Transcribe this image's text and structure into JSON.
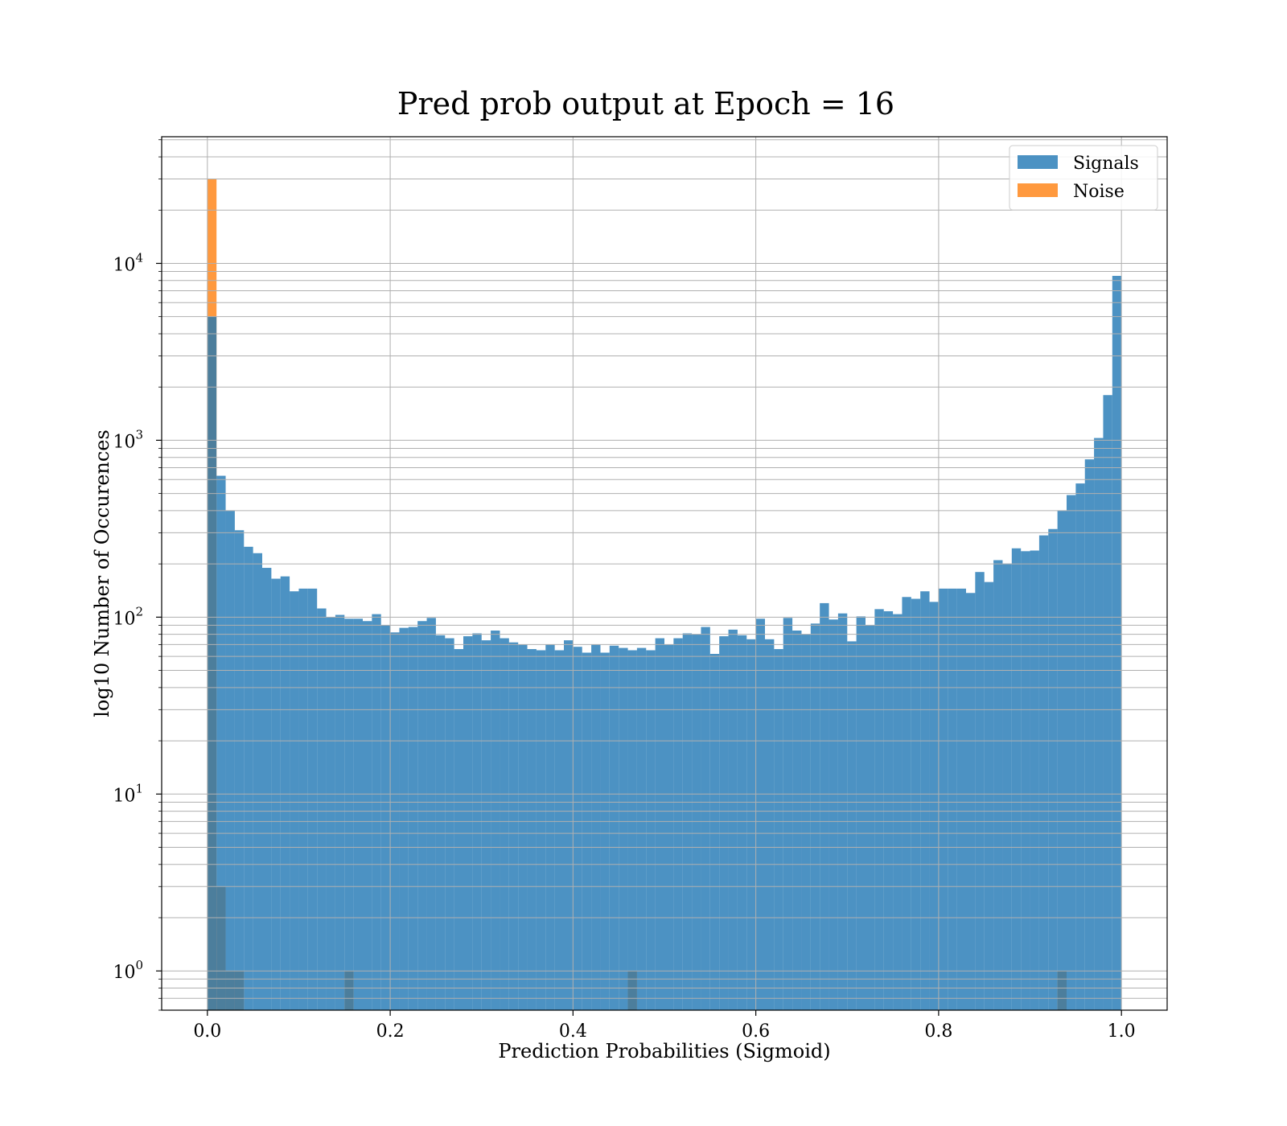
{
  "figure": {
    "title": "Pred prob output at Epoch = 16"
  },
  "chart_data": {
    "type": "bar",
    "title": "Pred prob output at Epoch = 16",
    "xlabel": "Prediction Probabilities (Sigmoid)",
    "ylabel": "log10 Number of Occurences",
    "xlim": [
      -0.05,
      1.05
    ],
    "ylim": [
      0.6,
      52000
    ],
    "yscale": "log",
    "grid": "on",
    "legend_position": "top-right",
    "x_ticks": [
      0.0,
      0.2,
      0.4,
      0.6,
      0.8,
      1.0
    ],
    "x_tick_labels": [
      "0.0",
      "0.2",
      "0.4",
      "0.6",
      "0.8",
      "1.0"
    ],
    "y_ticks": [
      1,
      10,
      100,
      1000,
      10000
    ],
    "y_tick_labels": [
      "10",
      "10",
      "10",
      "10",
      "10"
    ],
    "y_tick_exponents": [
      "0",
      "1",
      "2",
      "3",
      "4"
    ],
    "bin_width": 0.01,
    "series": [
      {
        "name": "Signals",
        "color": "#1f77b4",
        "bin_start": 0.0,
        "values": [
          5000,
          630,
          400,
          310,
          250,
          230,
          190,
          165,
          170,
          140,
          145,
          145,
          112,
          100,
          103,
          98,
          98,
          95,
          104,
          90,
          82,
          87,
          88,
          95,
          99,
          79,
          76,
          66,
          78,
          81,
          74,
          84,
          76,
          72,
          70,
          66,
          65,
          70,
          65,
          74,
          68,
          63,
          70,
          63,
          69,
          67,
          65,
          67,
          65,
          76,
          70,
          76,
          81,
          80,
          88,
          62,
          78,
          85,
          79,
          75,
          98,
          75,
          66,
          99,
          84,
          80,
          92,
          120,
          97,
          105,
          73,
          101,
          90,
          111,
          108,
          104,
          130,
          127,
          140,
          122,
          145,
          145,
          145,
          137,
          180,
          158,
          210,
          201,
          245,
          236,
          238,
          290,
          315,
          400,
          490,
          570,
          780,
          1030,
          1800,
          8500
        ]
      },
      {
        "name": "Noise",
        "color": "#ff7f0e",
        "bins": [
          {
            "x": 0.0,
            "count": 30000
          },
          {
            "x": 0.01,
            "count": 3
          },
          {
            "x": 0.02,
            "count": 1
          },
          {
            "x": 0.03,
            "count": 1
          },
          {
            "x": 0.15,
            "count": 1
          },
          {
            "x": 0.46,
            "count": 1
          },
          {
            "x": 0.93,
            "count": 1
          }
        ]
      }
    ]
  }
}
